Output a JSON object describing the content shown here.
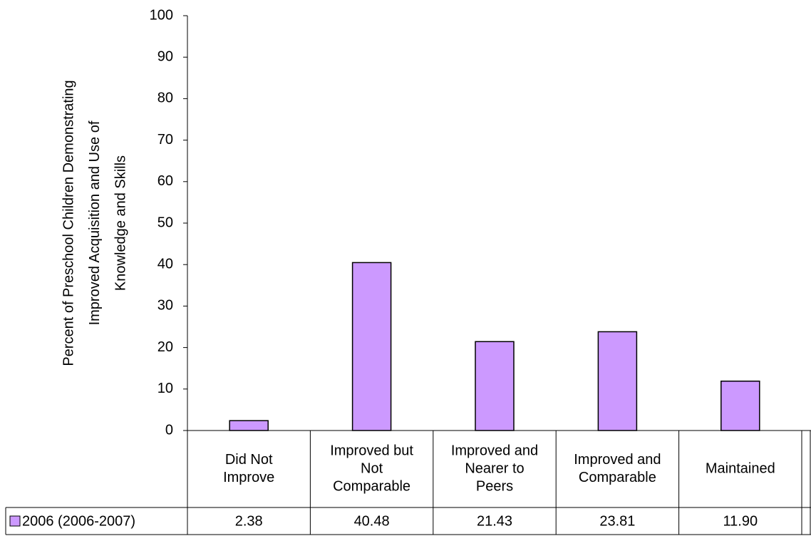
{
  "chart_data": {
    "type": "bar",
    "y_label": [
      "Percent of Preschool Children Demonstrating",
      "Improved Acquisition and Use of",
      "Knowledge and Skills"
    ],
    "categories": [
      [
        "Did Not",
        "Improve"
      ],
      [
        "Improved but",
        "Not",
        "Comparable"
      ],
      [
        "Improved and",
        "Nearer to",
        "Peers"
      ],
      [
        "Improved and",
        "Comparable"
      ],
      [
        "Maintained"
      ]
    ],
    "series": [
      {
        "name": "2006 (2006-2007)",
        "color": "#cc99ff",
        "values": [
          2.38,
          40.48,
          21.43,
          23.81,
          11.9
        ],
        "value_labels": [
          "2.38",
          "40.48",
          "21.43",
          "23.81",
          "11.90"
        ]
      }
    ],
    "ylim": [
      0,
      100
    ],
    "yticks": [
      0,
      10,
      20,
      30,
      40,
      50,
      60,
      70,
      80,
      90,
      100
    ]
  }
}
